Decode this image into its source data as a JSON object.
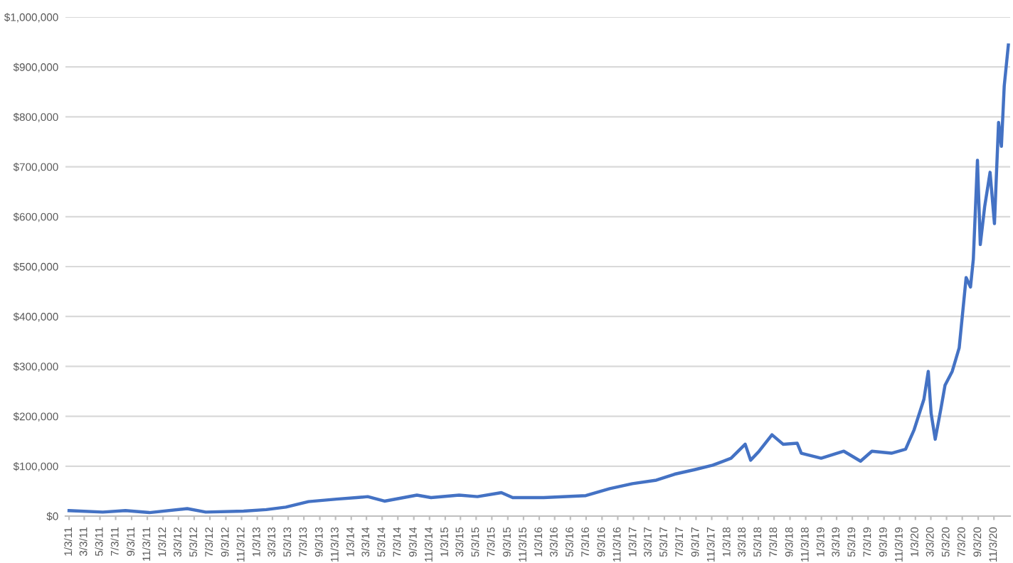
{
  "chart_data": {
    "type": "line",
    "x": [
      "2011-01-03",
      "2011-05-14",
      "2011-08-10",
      "2011-11-11",
      "2012-04-06",
      "2012-06-17",
      "2012-11-11",
      "2013-02-07",
      "2013-04-24",
      "2013-07-21",
      "2013-11-07",
      "2014-01-23",
      "2014-03-08",
      "2014-05-12",
      "2014-09-15",
      "2014-11-09",
      "2015-02-26",
      "2015-05-08",
      "2015-08-09",
      "2015-09-22",
      "2016-01-20",
      "2016-07-02",
      "2016-10-03",
      "2016-12-30",
      "2017-04-02",
      "2017-06-12",
      "2017-08-28",
      "2017-11-07",
      "2018-01-17",
      "2018-03-13",
      "2018-04-03",
      "2018-05-06",
      "2018-06-25",
      "2018-08-07",
      "2018-10-01",
      "2018-10-17",
      "2019-01-02",
      "2019-03-31",
      "2019-06-04",
      "2019-07-18",
      "2019-10-02",
      "2019-11-26",
      "2019-12-29",
      "2020-02-05",
      "2020-02-22",
      "2020-03-04",
      "2020-03-20",
      "2020-04-11",
      "2020-04-27",
      "2020-05-25",
      "2020-06-21",
      "2020-07-18",
      "2020-08-04",
      "2020-08-15",
      "2020-08-31",
      "2020-09-11",
      "2020-09-28",
      "2020-10-19",
      "2020-11-05",
      "2020-11-21",
      "2020-12-02",
      "2020-12-13",
      "2020-12-29"
    ],
    "series": [
      {
        "color": "#4472c4",
        "values": [
          11000,
          8000,
          11000,
          7000,
          15000,
          8000,
          10000,
          13000,
          18000,
          29000,
          34000,
          37000,
          39000,
          30000,
          42000,
          37000,
          42000,
          39000,
          47000,
          37000,
          37000,
          41000,
          55000,
          65000,
          72000,
          84000,
          93000,
          102000,
          116000,
          144000,
          112000,
          130000,
          163000,
          144000,
          146000,
          126000,
          116000,
          130000,
          110000,
          130000,
          126000,
          134000,
          173000,
          234000,
          290000,
          206000,
          154000,
          215000,
          262000,
          290000,
          337000,
          478000,
          459000,
          515000,
          713000,
          544000,
          620000,
          689000,
          586000,
          789000,
          741000,
          862000,
          944000
        ]
      }
    ],
    "xlim": [
      "2010-12-20",
      "2021-01-05"
    ],
    "xticks": [
      {
        "value": "2011-01-03",
        "label": "1/3/11"
      },
      {
        "value": "2011-03-03",
        "label": "3/3/11"
      },
      {
        "value": "2011-05-03",
        "label": "5/3/11"
      },
      {
        "value": "2011-07-03",
        "label": "7/3/11"
      },
      {
        "value": "2011-09-03",
        "label": "9/3/11"
      },
      {
        "value": "2011-11-03",
        "label": "11/3/11"
      },
      {
        "value": "2012-01-03",
        "label": "1/3/12"
      },
      {
        "value": "2012-03-03",
        "label": "3/3/12"
      },
      {
        "value": "2012-05-03",
        "label": "5/3/12"
      },
      {
        "value": "2012-07-03",
        "label": "7/3/12"
      },
      {
        "value": "2012-09-03",
        "label": "9/3/12"
      },
      {
        "value": "2012-11-03",
        "label": "11/3/12"
      },
      {
        "value": "2013-01-03",
        "label": "1/3/13"
      },
      {
        "value": "2013-03-03",
        "label": "3/3/13"
      },
      {
        "value": "2013-05-03",
        "label": "5/3/13"
      },
      {
        "value": "2013-07-03",
        "label": "7/3/13"
      },
      {
        "value": "2013-09-03",
        "label": "9/3/13"
      },
      {
        "value": "2013-11-03",
        "label": "11/3/13"
      },
      {
        "value": "2014-01-03",
        "label": "1/3/14"
      },
      {
        "value": "2014-03-03",
        "label": "3/3/14"
      },
      {
        "value": "2014-05-03",
        "label": "5/3/14"
      },
      {
        "value": "2014-07-03",
        "label": "7/3/14"
      },
      {
        "value": "2014-09-03",
        "label": "9/3/14"
      },
      {
        "value": "2014-11-03",
        "label": "11/3/14"
      },
      {
        "value": "2015-01-03",
        "label": "1/3/15"
      },
      {
        "value": "2015-03-03",
        "label": "3/3/15"
      },
      {
        "value": "2015-05-03",
        "label": "5/3/15"
      },
      {
        "value": "2015-07-03",
        "label": "7/3/15"
      },
      {
        "value": "2015-09-03",
        "label": "9/3/15"
      },
      {
        "value": "2015-11-03",
        "label": "11/3/15"
      },
      {
        "value": "2016-01-03",
        "label": "1/3/16"
      },
      {
        "value": "2016-03-03",
        "label": "3/3/16"
      },
      {
        "value": "2016-05-03",
        "label": "5/3/16"
      },
      {
        "value": "2016-07-03",
        "label": "7/3/16"
      },
      {
        "value": "2016-09-03",
        "label": "9/3/16"
      },
      {
        "value": "2016-11-03",
        "label": "11/3/16"
      },
      {
        "value": "2017-01-03",
        "label": "1/3/17"
      },
      {
        "value": "2017-03-03",
        "label": "3/3/17"
      },
      {
        "value": "2017-05-03",
        "label": "5/3/17"
      },
      {
        "value": "2017-07-03",
        "label": "7/3/17"
      },
      {
        "value": "2017-09-03",
        "label": "9/3/17"
      },
      {
        "value": "2017-11-03",
        "label": "11/3/17"
      },
      {
        "value": "2018-01-03",
        "label": "1/3/18"
      },
      {
        "value": "2018-03-03",
        "label": "3/3/18"
      },
      {
        "value": "2018-05-03",
        "label": "5/3/18"
      },
      {
        "value": "2018-07-03",
        "label": "7/3/18"
      },
      {
        "value": "2018-09-03",
        "label": "9/3/18"
      },
      {
        "value": "2018-11-03",
        "label": "11/3/18"
      },
      {
        "value": "2019-01-03",
        "label": "1/3/19"
      },
      {
        "value": "2019-03-03",
        "label": "3/3/19"
      },
      {
        "value": "2019-05-03",
        "label": "5/3/19"
      },
      {
        "value": "2019-07-03",
        "label": "7/3/19"
      },
      {
        "value": "2019-09-03",
        "label": "9/3/19"
      },
      {
        "value": "2019-11-03",
        "label": "11/3/19"
      },
      {
        "value": "2020-01-03",
        "label": "1/3/20"
      },
      {
        "value": "2020-03-03",
        "label": "3/3/20"
      },
      {
        "value": "2020-05-03",
        "label": "5/3/20"
      },
      {
        "value": "2020-07-03",
        "label": "7/3/20"
      },
      {
        "value": "2020-09-03",
        "label": "9/3/20"
      },
      {
        "value": "2020-11-03",
        "label": "11/3/20"
      }
    ],
    "ylim": [
      0,
      1000000
    ],
    "yticks": [
      {
        "value": 0,
        "label": "$0"
      },
      {
        "value": 100000,
        "label": "$100,000"
      },
      {
        "value": 200000,
        "label": "$200,000"
      },
      {
        "value": 300000,
        "label": "$300,000"
      },
      {
        "value": 400000,
        "label": "$400,000"
      },
      {
        "value": 500000,
        "label": "$500,000"
      },
      {
        "value": 600000,
        "label": "$600,000"
      },
      {
        "value": 700000,
        "label": "$700,000"
      },
      {
        "value": 800000,
        "label": "$800,000"
      },
      {
        "value": 900000,
        "label": "$900,000"
      },
      {
        "value": 1000000,
        "label": "$1,000,000"
      }
    ],
    "grid": "y",
    "marker": "none",
    "line_style": "solid"
  }
}
